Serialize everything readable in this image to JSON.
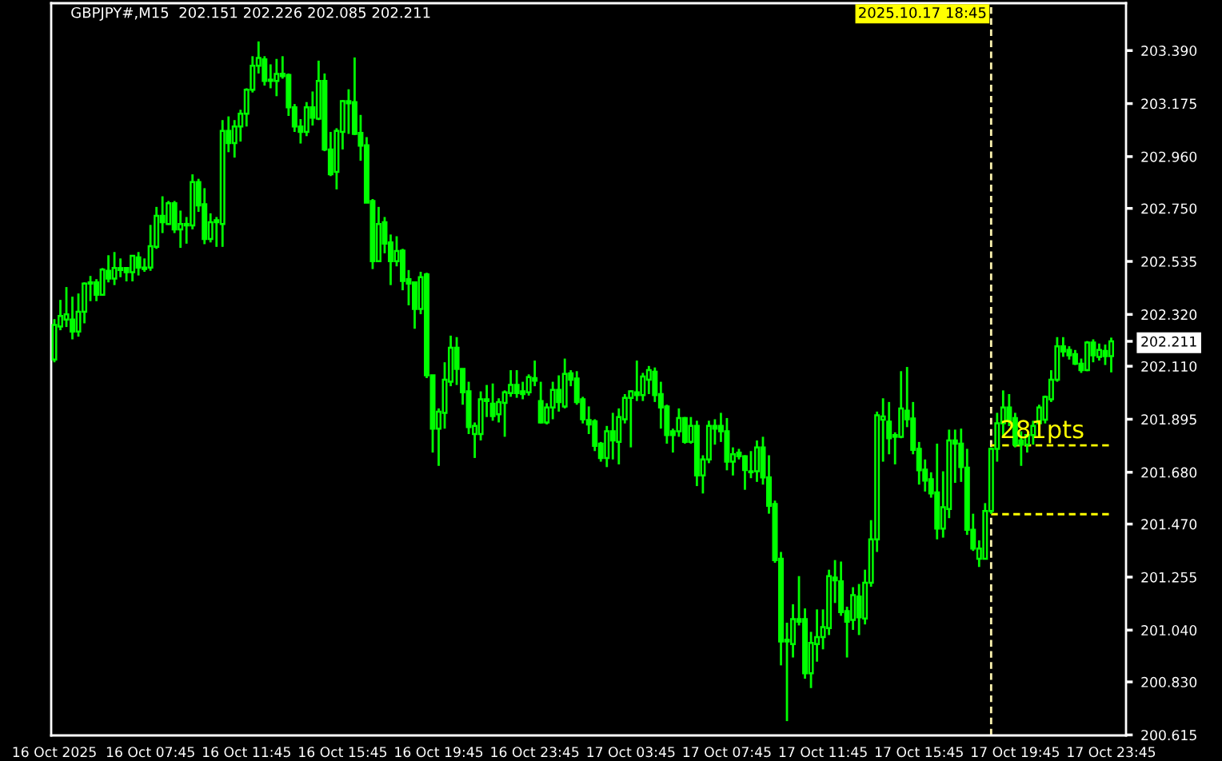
{
  "chart_data": {
    "type": "candlestick",
    "title": "GBPJPY#,M15  202.151 202.226 202.085 202.211",
    "color": "#00ff00",
    "x": [
      "2025-10-16T03:45",
      "2025-10-16T04:00",
      "2025-10-16T04:15",
      "2025-10-16T04:30",
      "2025-10-16T04:45",
      "2025-10-16T05:00",
      "2025-10-16T05:15",
      "2025-10-16T05:30",
      "2025-10-16T05:45",
      "2025-10-16T06:00",
      "2025-10-16T06:15",
      "2025-10-16T06:30",
      "2025-10-16T06:45",
      "2025-10-16T07:00",
      "2025-10-16T07:15",
      "2025-10-16T07:30",
      "2025-10-16T07:45",
      "2025-10-16T08:00",
      "2025-10-16T08:15",
      "2025-10-16T08:30",
      "2025-10-16T08:45",
      "2025-10-16T09:00",
      "2025-10-16T09:15",
      "2025-10-16T09:30",
      "2025-10-16T09:45",
      "2025-10-16T10:00",
      "2025-10-16T10:15",
      "2025-10-16T10:30",
      "2025-10-16T10:45",
      "2025-10-16T11:00",
      "2025-10-16T11:15",
      "2025-10-16T11:30",
      "2025-10-16T11:45",
      "2025-10-16T12:00",
      "2025-10-16T12:15",
      "2025-10-16T12:30",
      "2025-10-16T12:45",
      "2025-10-16T13:00",
      "2025-10-16T13:15",
      "2025-10-16T13:30",
      "2025-10-16T13:45",
      "2025-10-16T14:00",
      "2025-10-16T14:15",
      "2025-10-16T14:30",
      "2025-10-16T14:45",
      "2025-10-16T15:00",
      "2025-10-16T15:15",
      "2025-10-16T15:30",
      "2025-10-16T15:45",
      "2025-10-16T16:00",
      "2025-10-16T16:15",
      "2025-10-16T16:30",
      "2025-10-16T16:45",
      "2025-10-16T17:00",
      "2025-10-16T17:15",
      "2025-10-16T17:30",
      "2025-10-16T17:45",
      "2025-10-16T18:00",
      "2025-10-16T18:15",
      "2025-10-16T18:30",
      "2025-10-16T18:45",
      "2025-10-16T19:00",
      "2025-10-16T19:15",
      "2025-10-16T19:30",
      "2025-10-16T19:45",
      "2025-10-16T20:00",
      "2025-10-16T20:15",
      "2025-10-16T20:30",
      "2025-10-16T20:45",
      "2025-10-16T21:00",
      "2025-10-16T21:15",
      "2025-10-16T21:30",
      "2025-10-16T21:45",
      "2025-10-16T22:00",
      "2025-10-16T22:15",
      "2025-10-16T22:30",
      "2025-10-16T22:45",
      "2025-10-16T23:00",
      "2025-10-16T23:15",
      "2025-10-16T23:30",
      "2025-10-16T23:45",
      "2025-10-17T00:00",
      "2025-10-17T00:15",
      "2025-10-17T00:30",
      "2025-10-17T00:45",
      "2025-10-17T01:00",
      "2025-10-17T01:15",
      "2025-10-17T01:30",
      "2025-10-17T01:45",
      "2025-10-17T02:00",
      "2025-10-17T02:15",
      "2025-10-17T02:30",
      "2025-10-17T02:45",
      "2025-10-17T03:00",
      "2025-10-17T03:15",
      "2025-10-17T03:30",
      "2025-10-17T03:45",
      "2025-10-17T04:00",
      "2025-10-17T04:15",
      "2025-10-17T04:30",
      "2025-10-17T04:45",
      "2025-10-17T05:00",
      "2025-10-17T05:15",
      "2025-10-17T05:30",
      "2025-10-17T05:45",
      "2025-10-17T06:00",
      "2025-10-17T06:15",
      "2025-10-17T06:30",
      "2025-10-17T06:45",
      "2025-10-17T07:00",
      "2025-10-17T07:15",
      "2025-10-17T07:30",
      "2025-10-17T07:45",
      "2025-10-17T08:00",
      "2025-10-17T08:15",
      "2025-10-17T08:30",
      "2025-10-17T08:45",
      "2025-10-17T09:00",
      "2025-10-17T09:15",
      "2025-10-17T09:30",
      "2025-10-17T09:45",
      "2025-10-17T10:00",
      "2025-10-17T10:15",
      "2025-10-17T10:30",
      "2025-10-17T10:45",
      "2025-10-17T11:00",
      "2025-10-17T11:15",
      "2025-10-17T11:30",
      "2025-10-17T11:45",
      "2025-10-17T12:00",
      "2025-10-17T12:15",
      "2025-10-17T12:30",
      "2025-10-17T12:45",
      "2025-10-17T13:00",
      "2025-10-17T13:15",
      "2025-10-17T13:30",
      "2025-10-17T13:45",
      "2025-10-17T14:00",
      "2025-10-17T14:15",
      "2025-10-17T14:30",
      "2025-10-17T14:45",
      "2025-10-17T15:00",
      "2025-10-17T15:15",
      "2025-10-17T15:30",
      "2025-10-17T15:45",
      "2025-10-17T16:00",
      "2025-10-17T16:15",
      "2025-10-17T16:30",
      "2025-10-17T16:45",
      "2025-10-17T17:00",
      "2025-10-17T17:15",
      "2025-10-17T17:30",
      "2025-10-17T17:45",
      "2025-10-17T18:00",
      "2025-10-17T18:15",
      "2025-10-17T18:30",
      "2025-10-17T18:45",
      "2025-10-17T19:00",
      "2025-10-17T19:15",
      "2025-10-17T19:30",
      "2025-10-17T19:45",
      "2025-10-17T20:00",
      "2025-10-17T20:15",
      "2025-10-17T20:30",
      "2025-10-17T20:45",
      "2025-10-17T21:00",
      "2025-10-17T21:15",
      "2025-10-17T21:30",
      "2025-10-17T21:45",
      "2025-10-17T22:00",
      "2025-10-17T22:15",
      "2025-10-17T22:30",
      "2025-10-17T22:45",
      "2025-10-17T23:00",
      "2025-10-17T23:15",
      "2025-10-17T23:30",
      "2025-10-17T23:45"
    ],
    "ohlc": [
      [
        202.137,
        202.301,
        202.126,
        202.277
      ],
      [
        202.271,
        202.379,
        202.256,
        202.314
      ],
      [
        202.299,
        202.431,
        202.269,
        202.32
      ],
      [
        202.299,
        202.392,
        202.219,
        202.251
      ],
      [
        202.251,
        202.405,
        202.23,
        202.331
      ],
      [
        202.331,
        202.45,
        202.284,
        202.445
      ],
      [
        202.445,
        202.476,
        202.374,
        202.45
      ],
      [
        202.45,
        202.463,
        202.374,
        202.4
      ],
      [
        202.4,
        202.508,
        202.396,
        202.502
      ],
      [
        202.497,
        202.56,
        202.45,
        202.465
      ],
      [
        202.465,
        202.573,
        202.439,
        202.508
      ],
      [
        202.508,
        202.547,
        202.471,
        202.5
      ],
      [
        202.508,
        202.508,
        202.454,
        202.491
      ],
      [
        202.491,
        202.56,
        202.454,
        202.558
      ],
      [
        202.551,
        202.573,
        202.478,
        202.51
      ],
      [
        202.51,
        202.547,
        202.493,
        202.504
      ],
      [
        202.51,
        202.683,
        202.497,
        202.597
      ],
      [
        202.594,
        202.756,
        202.586,
        202.72
      ],
      [
        202.72,
        202.799,
        202.65,
        202.694
      ],
      [
        202.687,
        202.78,
        202.683,
        202.771
      ],
      [
        202.771,
        202.78,
        202.65,
        202.665
      ],
      [
        202.665,
        202.741,
        202.59,
        202.687
      ],
      [
        202.687,
        202.715,
        202.607,
        202.681
      ],
      [
        202.681,
        202.888,
        202.665,
        202.857
      ],
      [
        202.857,
        202.87,
        202.736,
        202.762
      ],
      [
        202.767,
        202.832,
        202.605,
        202.626
      ],
      [
        202.626,
        202.73,
        202.612,
        202.694
      ],
      [
        202.694,
        202.715,
        202.594,
        202.702
      ],
      [
        202.687,
        203.108,
        202.594,
        203.064
      ],
      [
        203.064,
        203.123,
        202.978,
        203.015
      ],
      [
        203.015,
        203.108,
        202.956,
        203.082
      ],
      [
        203.082,
        203.15,
        203.021,
        203.134
      ],
      [
        203.134,
        203.237,
        203.082,
        203.231
      ],
      [
        203.231,
        203.367,
        203.22,
        203.328
      ],
      [
        203.328,
        203.427,
        203.297,
        203.36
      ],
      [
        203.354,
        203.367,
        203.248,
        203.267
      ],
      [
        203.272,
        203.334,
        203.237,
        203.267
      ],
      [
        203.267,
        203.356,
        203.205,
        203.295
      ],
      [
        203.296,
        203.367,
        203.276,
        203.286
      ],
      [
        203.291,
        203.297,
        203.125,
        203.16
      ],
      [
        203.16,
        203.173,
        203.06,
        203.082
      ],
      [
        203.082,
        203.112,
        203.013,
        203.06
      ],
      [
        203.06,
        203.181,
        203.043,
        203.16
      ],
      [
        203.16,
        203.224,
        203.086,
        203.118
      ],
      [
        203.114,
        203.349,
        203.108,
        203.267
      ],
      [
        203.267,
        203.297,
        202.982,
        202.989
      ],
      [
        202.989,
        203.06,
        202.881,
        202.888
      ],
      [
        202.898,
        203.075,
        202.827,
        203.064
      ],
      [
        203.06,
        203.189,
        202.989,
        203.185
      ],
      [
        203.185,
        203.233,
        203.052,
        203.176
      ],
      [
        203.181,
        203.362,
        203.047,
        203.052
      ],
      [
        203.056,
        203.129,
        202.943,
        203.004
      ],
      [
        203.006,
        203.039,
        202.773,
        202.773
      ],
      [
        202.78,
        202.788,
        202.504,
        202.536
      ],
      [
        202.536,
        202.756,
        202.536,
        202.687
      ],
      [
        202.694,
        202.715,
        202.568,
        202.607
      ],
      [
        202.612,
        202.644,
        202.439,
        202.536
      ],
      [
        202.536,
        202.637,
        202.515,
        202.577
      ],
      [
        202.579,
        202.586,
        202.418,
        202.456
      ],
      [
        202.463,
        202.5,
        202.357,
        202.445
      ],
      [
        202.45,
        202.45,
        202.262,
        202.342
      ],
      [
        202.342,
        202.493,
        202.321,
        202.471
      ],
      [
        202.482,
        202.489,
        202.062,
        202.073
      ],
      [
        202.073,
        202.073,
        201.76,
        201.857
      ],
      [
        201.857,
        201.939,
        201.706,
        201.926
      ],
      [
        201.921,
        202.126,
        201.857,
        202.055
      ],
      [
        202.047,
        202.234,
        202.029,
        202.185
      ],
      [
        202.185,
        202.228,
        202.034,
        202.099
      ],
      [
        202.099,
        202.099,
        201.954,
        202.004
      ],
      [
        202.008,
        202.047,
        201.835,
        201.863
      ],
      [
        201.835,
        201.882,
        201.738,
        201.868
      ],
      [
        201.835,
        202.008,
        201.809,
        201.976
      ],
      [
        201.976,
        202.034,
        201.904,
        201.969
      ],
      [
        201.958,
        202.04,
        201.889,
        201.908
      ],
      [
        201.915,
        201.98,
        201.882,
        201.965
      ],
      [
        201.961,
        202.012,
        201.824,
        202.004
      ],
      [
        202.001,
        202.094,
        201.986,
        202.034
      ],
      [
        202.034,
        202.094,
        201.982,
        202.001
      ],
      [
        202.008,
        202.047,
        201.976,
        201.997
      ],
      [
        202.004,
        202.077,
        201.991,
        202.066
      ],
      [
        202.062,
        202.133,
        202.029,
        202.051
      ],
      [
        201.969,
        202.047,
        201.878,
        201.882
      ],
      [
        201.882,
        201.96,
        201.874,
        201.943
      ],
      [
        201.943,
        202.047,
        201.895,
        202.014
      ],
      [
        202.014,
        202.073,
        201.926,
        201.965
      ],
      [
        201.947,
        202.141,
        201.939,
        202.079
      ],
      [
        202.081,
        202.094,
        202.029,
        202.055
      ],
      [
        202.06,
        202.09,
        201.954,
        201.965
      ],
      [
        201.976,
        201.986,
        201.878,
        201.895
      ],
      [
        201.892,
        201.947,
        201.835,
        201.874
      ],
      [
        201.887,
        201.895,
        201.766,
        201.787
      ],
      [
        201.796,
        201.803,
        201.723,
        201.738
      ],
      [
        201.738,
        201.868,
        201.701,
        201.846
      ],
      [
        201.846,
        201.921,
        201.732,
        201.809
      ],
      [
        201.803,
        201.939,
        201.712,
        201.904
      ],
      [
        201.895,
        201.997,
        201.878,
        201.982
      ],
      [
        201.982,
        202.012,
        201.781,
        202.008
      ],
      [
        202.004,
        202.133,
        201.969,
        201.993
      ],
      [
        201.993,
        202.083,
        201.969,
        202.068
      ],
      [
        202.055,
        202.111,
        201.997,
        202.094
      ],
      [
        202.088,
        202.105,
        201.965,
        201.993
      ],
      [
        201.997,
        202.047,
        201.857,
        201.943
      ],
      [
        201.947,
        201.954,
        201.796,
        201.831
      ],
      [
        201.846,
        201.857,
        201.76,
        201.831
      ],
      [
        201.846,
        201.939,
        201.824,
        201.9
      ],
      [
        201.9,
        201.904,
        201.796,
        201.803
      ],
      [
        201.803,
        201.904,
        201.796,
        201.868
      ],
      [
        201.868,
        201.889,
        201.624,
        201.667
      ],
      [
        201.667,
        201.749,
        201.594,
        201.732
      ],
      [
        201.732,
        201.889,
        201.717,
        201.868
      ],
      [
        201.868,
        201.895,
        201.792,
        201.857
      ],
      [
        201.868,
        201.921,
        201.803,
        201.846
      ],
      [
        201.846,
        201.9,
        201.688,
        201.723
      ],
      [
        201.723,
        201.781,
        201.667,
        201.753
      ],
      [
        201.76,
        201.775,
        201.732,
        201.745
      ],
      [
        201.745,
        201.749,
        201.609,
        201.689
      ],
      [
        201.684,
        201.766,
        201.656,
        201.68
      ],
      [
        201.684,
        201.809,
        201.641,
        201.781
      ],
      [
        201.781,
        201.824,
        201.63,
        201.659
      ],
      [
        201.659,
        201.749,
        201.512,
        201.544
      ],
      [
        201.551,
        201.565,
        201.313,
        201.324
      ],
      [
        201.329,
        201.357,
        200.897,
        200.994
      ],
      [
        201.001,
        201.07,
        200.671,
        200.994
      ],
      [
        200.983,
        201.145,
        200.929,
        201.085
      ],
      [
        201.085,
        201.259,
        201.059,
        201.074
      ],
      [
        201.085,
        201.128,
        200.843,
        200.865
      ],
      [
        200.865,
        201.033,
        200.805,
        200.988
      ],
      [
        200.983,
        201.124,
        200.912,
        201.012
      ],
      [
        201.012,
        201.124,
        200.962,
        201.052
      ],
      [
        201.048,
        201.285,
        201.02,
        201.259
      ],
      [
        201.253,
        201.324,
        201.15,
        201.242
      ],
      [
        201.238,
        201.318,
        201.098,
        201.113
      ],
      [
        201.117,
        201.135,
        200.929,
        201.074
      ],
      [
        201.081,
        201.214,
        201.041,
        201.182
      ],
      [
        201.176,
        201.227,
        201.02,
        201.092
      ],
      [
        201.087,
        201.285,
        201.063,
        201.232
      ],
      [
        201.232,
        201.486,
        201.216,
        201.408
      ],
      [
        201.408,
        201.926,
        201.357,
        201.911
      ],
      [
        201.893,
        201.98,
        201.723,
        201.906
      ],
      [
        201.885,
        201.965,
        201.753,
        201.818
      ],
      [
        201.831,
        201.842,
        201.712,
        201.824
      ],
      [
        201.824,
        202.09,
        201.818,
        201.939
      ],
      [
        201.93,
        202.107,
        201.863,
        201.895
      ],
      [
        201.898,
        201.965,
        201.753,
        201.771
      ],
      [
        201.775,
        201.803,
        201.63,
        201.688
      ],
      [
        201.691,
        201.732,
        201.602,
        201.646
      ],
      [
        201.652,
        201.68,
        201.577,
        201.594
      ],
      [
        201.598,
        201.796,
        201.408,
        201.452
      ],
      [
        201.452,
        201.684,
        201.415,
        201.538
      ],
      [
        201.531,
        201.853,
        201.494,
        201.809
      ],
      [
        201.809,
        201.853,
        201.637,
        201.796
      ],
      [
        201.796,
        201.857,
        201.641,
        201.701
      ],
      [
        201.699,
        201.775,
        201.426,
        201.447
      ],
      [
        201.447,
        201.512,
        201.361,
        201.371
      ],
      [
        201.329,
        201.404,
        201.296,
        201.371
      ],
      [
        201.329,
        201.555,
        201.329,
        201.523
      ],
      [
        201.523,
        201.781,
        201.512,
        201.775
      ],
      [
        201.775,
        201.921,
        201.723,
        201.879
      ],
      [
        201.879,
        202.012,
        201.824,
        201.943
      ],
      [
        201.943,
        201.997,
        201.867,
        201.889
      ],
      [
        201.9,
        201.921,
        201.781,
        201.792
      ],
      [
        201.809,
        201.846,
        201.706,
        201.792
      ],
      [
        201.792,
        201.835,
        201.76,
        201.831
      ],
      [
        201.831,
        201.889,
        201.792,
        201.868
      ],
      [
        201.879,
        201.954,
        201.867,
        201.943
      ],
      [
        201.893,
        201.991,
        201.878,
        201.986
      ],
      [
        201.976,
        202.094,
        201.965,
        202.055
      ],
      [
        202.055,
        202.228,
        202.047,
        202.191
      ],
      [
        202.191,
        202.228,
        202.148,
        202.17
      ],
      [
        202.176,
        202.191,
        202.137,
        202.154
      ],
      [
        202.159,
        202.176,
        202.115,
        202.12
      ],
      [
        202.12,
        202.141,
        202.083,
        202.094
      ],
      [
        202.094,
        202.212,
        202.09,
        202.206
      ],
      [
        202.206,
        202.219,
        202.126,
        202.154
      ],
      [
        202.148,
        202.202,
        202.133,
        202.176
      ],
      [
        202.172,
        202.198,
        202.115,
        202.151
      ],
      [
        202.151,
        202.226,
        202.085,
        202.211
      ]
    ],
    "xlim": [
      "2025-10-16T03:37",
      "2025-10-18T00:22"
    ],
    "xticks": [
      {
        "value": "2025-10-16T03:45",
        "label": "16 Oct 2025"
      },
      {
        "value": "2025-10-16T07:45",
        "label": "16 Oct 07:45"
      },
      {
        "value": "2025-10-16T11:45",
        "label": "16 Oct 11:45"
      },
      {
        "value": "2025-10-16T15:45",
        "label": "16 Oct 15:45"
      },
      {
        "value": "2025-10-16T19:45",
        "label": "16 Oct 19:45"
      },
      {
        "value": "2025-10-16T23:45",
        "label": "16 Oct 23:45"
      },
      {
        "value": "2025-10-17T03:45",
        "label": "17 Oct 03:45"
      },
      {
        "value": "2025-10-17T07:45",
        "label": "17 Oct 07:45"
      },
      {
        "value": "2025-10-17T11:45",
        "label": "17 Oct 11:45"
      },
      {
        "value": "2025-10-17T15:45",
        "label": "17 Oct 15:45"
      },
      {
        "value": "2025-10-17T19:45",
        "label": "17 Oct 19:45"
      },
      {
        "value": "2025-10-17T23:45",
        "label": "17 Oct 23:45"
      }
    ],
    "ylim": [
      200.613,
      203.582
    ],
    "yticks": [
      {
        "value": 203.39,
        "label": "203.390"
      },
      203.175,
      {
        "value": 202.96,
        "label": "202.960"
      },
      {
        "value": 202.75,
        "label": "202.750"
      },
      202.535,
      {
        "value": 202.32,
        "label": "202.320"
      },
      202.211,
      {
        "value": 202.11,
        "label": "202.110"
      },
      201.895,
      {
        "value": 201.68,
        "label": "201.680"
      },
      {
        "value": 201.47,
        "label": "201.470"
      },
      201.255,
      {
        "value": 201.04,
        "label": "201.040"
      },
      {
        "value": 200.83,
        "label": "200.830"
      },
      200.615
    ],
    "ref_lines": [
      {
        "axis": "x",
        "value": "2025-10-17T18:45",
        "label": "2025.10.17 18:45",
        "color": "#fff5b0",
        "line_style": "dashed"
      },
      {
        "axis": "y",
        "value": 201.789,
        "label": null,
        "color": "#ffff00",
        "line_style": "dashed"
      },
      {
        "axis": "y",
        "value": 201.51,
        "label": null,
        "color": "#ffff00",
        "line_style": "dashed"
      }
    ],
    "annotations": [
      {
        "text": "281pts",
        "x": "2025-10-17T18:45",
        "y": 201.789
      }
    ]
  }
}
